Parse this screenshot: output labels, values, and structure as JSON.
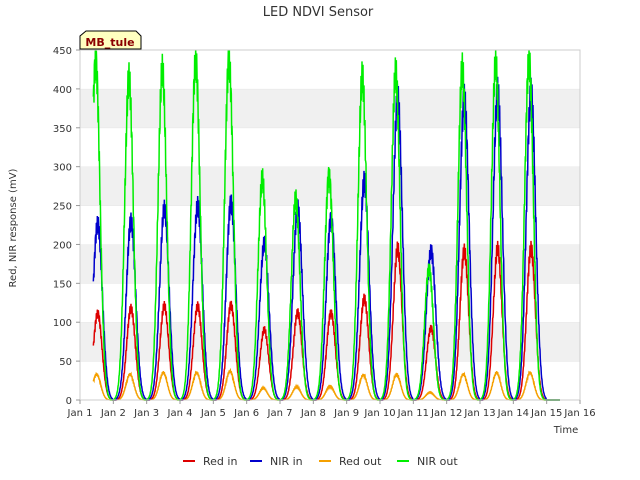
{
  "chart_data": {
    "type": "line",
    "title": "LED NDVI Sensor",
    "xlabel": "Time",
    "ylabel": "Red, NIR response (mV)",
    "tag": "MB_tule",
    "xlim": [
      1,
      16
    ],
    "ylim": [
      0,
      450
    ],
    "x_ticks": [
      1,
      2,
      3,
      4,
      5,
      6,
      7,
      8,
      9,
      10,
      11,
      12,
      13,
      14,
      15,
      16
    ],
    "x_tick_labels": [
      "Jan 1",
      "Jan 2",
      "Jan 3",
      "Jan 4",
      "Jan 5",
      "Jan 6",
      "Jan 7",
      "Jan 8",
      "Jan 9",
      "Jan 10",
      "Jan 11",
      "Jan 12",
      "Jan 13",
      "Jan 14",
      "Jan 15",
      "Jan 16"
    ],
    "y_ticks": [
      0,
      50,
      100,
      150,
      200,
      250,
      300,
      350,
      400,
      450
    ],
    "y_tick_labels": [
      "0",
      "50",
      "100",
      "150",
      "200",
      "250",
      "300",
      "350",
      "400",
      "450"
    ],
    "grid": "horizontal alternating bands",
    "legend_position": "bottom",
    "daily_peaks": {
      "days": [
        1.5,
        2.5,
        3.5,
        4.5,
        5.5,
        6.5,
        7.5,
        8.5,
        9.5,
        10.5,
        11.5,
        12.5,
        13.5,
        14.5
      ],
      "Red in": [
        112,
        118,
        120,
        121,
        123,
        90,
        112,
        113,
        130,
        193,
        93,
        192,
        193,
        195
      ],
      "NIR in": [
        228,
        230,
        243,
        250,
        255,
        200,
        245,
        235,
        280,
        385,
        193,
        388,
        392,
        395
      ],
      "Red out": [
        33,
        33,
        35,
        35,
        37,
        15,
        17,
        18,
        32,
        33,
        10,
        33,
        35,
        35
      ],
      "NIR out": [
        438,
        413,
        420,
        437,
        438,
        282,
        258,
        290,
        413,
        418,
        170,
        425,
        428,
        438
      ]
    },
    "series": [
      {
        "name": "Red in",
        "color": "#dd0000"
      },
      {
        "name": "NIR in",
        "color": "#0000cc"
      },
      {
        "name": "Red out",
        "color": "#f5a000"
      },
      {
        "name": "NIR out",
        "color": "#00ee00"
      }
    ]
  }
}
